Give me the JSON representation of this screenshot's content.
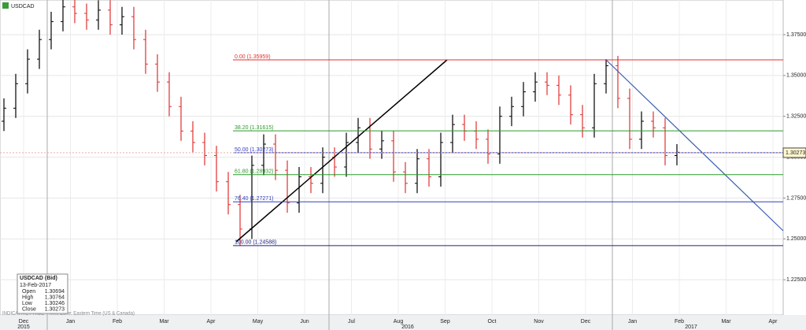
{
  "chart_data": {
    "type": "ohlc",
    "symbol": "USDCAD",
    "bars": [
      [
        1.322,
        1.336,
        1.316,
        1.33
      ],
      [
        1.33,
        1.351,
        1.324,
        1.345
      ],
      [
        1.345,
        1.366,
        1.339,
        1.36
      ],
      [
        1.36,
        1.378,
        1.354,
        1.372
      ],
      [
        1.372,
        1.389,
        1.366,
        1.383
      ],
      [
        1.383,
        1.398,
        1.377,
        1.392
      ],
      [
        1.392,
        1.398,
        1.382,
        1.388
      ],
      [
        1.388,
        1.394,
        1.378,
        1.384
      ],
      [
        1.384,
        1.396,
        1.378,
        1.39
      ],
      [
        1.39,
        1.396,
        1.375,
        1.381
      ],
      [
        1.381,
        1.392,
        1.375,
        1.386
      ],
      [
        1.386,
        1.392,
        1.366,
        1.372
      ],
      [
        1.372,
        1.378,
        1.351,
        1.357
      ],
      [
        1.357,
        1.363,
        1.34,
        1.346
      ],
      [
        1.346,
        1.352,
        1.325,
        1.331
      ],
      [
        1.331,
        1.337,
        1.31,
        1.316
      ],
      [
        1.316,
        1.322,
        1.303,
        1.309
      ],
      [
        1.309,
        1.315,
        1.295,
        1.301
      ],
      [
        1.301,
        1.307,
        1.279,
        1.285
      ],
      [
        1.285,
        1.291,
        1.265,
        1.271
      ],
      [
        1.271,
        1.277,
        1.246,
        1.256
      ],
      [
        1.256,
        1.301,
        1.25,
        1.295
      ],
      [
        1.295,
        1.314,
        1.289,
        1.308
      ],
      [
        1.308,
        1.314,
        1.286,
        1.292
      ],
      [
        1.292,
        1.298,
        1.266,
        1.272
      ],
      [
        1.272,
        1.294,
        1.266,
        1.288
      ],
      [
        1.288,
        1.294,
        1.278,
        1.284
      ],
      [
        1.284,
        1.306,
        1.278,
        1.3
      ],
      [
        1.3,
        1.306,
        1.288,
        1.294
      ],
      [
        1.294,
        1.315,
        1.288,
        1.309
      ],
      [
        1.309,
        1.324,
        1.303,
        1.318
      ],
      [
        1.318,
        1.324,
        1.299,
        1.305
      ],
      [
        1.305,
        1.316,
        1.299,
        1.31
      ],
      [
        1.31,
        1.316,
        1.285,
        1.291
      ],
      [
        1.291,
        1.297,
        1.278,
        1.284
      ],
      [
        1.284,
        1.305,
        1.278,
        1.299
      ],
      [
        1.299,
        1.305,
        1.282,
        1.288
      ],
      [
        1.288,
        1.315,
        1.282,
        1.309
      ],
      [
        1.309,
        1.326,
        1.303,
        1.32
      ],
      [
        1.32,
        1.326,
        1.31,
        1.316
      ],
      [
        1.316,
        1.322,
        1.305,
        1.311
      ],
      [
        1.311,
        1.317,
        1.296,
        1.302
      ],
      [
        1.302,
        1.331,
        1.296,
        1.325
      ],
      [
        1.325,
        1.337,
        1.319,
        1.331
      ],
      [
        1.331,
        1.346,
        1.325,
        1.34
      ],
      [
        1.34,
        1.352,
        1.334,
        1.346
      ],
      [
        1.346,
        1.352,
        1.338,
        1.344
      ],
      [
        1.344,
        1.35,
        1.332,
        1.338
      ],
      [
        1.338,
        1.344,
        1.32,
        1.326
      ],
      [
        1.326,
        1.332,
        1.312,
        1.318
      ],
      [
        1.318,
        1.351,
        1.312,
        1.345
      ],
      [
        1.345,
        1.36,
        1.339,
        1.356
      ],
      [
        1.356,
        1.362,
        1.33,
        1.336
      ],
      [
        1.336,
        1.342,
        1.305,
        1.311
      ],
      [
        1.311,
        1.328,
        1.305,
        1.322
      ],
      [
        1.322,
        1.328,
        1.312,
        1.318
      ],
      [
        1.318,
        1.324,
        1.295,
        1.301
      ],
      [
        1.301,
        1.308,
        1.295,
        1.303
      ]
    ],
    "up_color": "#000000",
    "down_color": "#e03030",
    "ylim": [
      1.2034,
      1.3962
    ],
    "yticks": [
      {
        "value": 1.375,
        "label": "1.37500"
      },
      {
        "value": 1.35,
        "label": "1.35000"
      },
      {
        "value": 1.325,
        "label": "1.32500"
      },
      {
        "value": 1.3,
        "label": "1.30000"
      },
      {
        "value": 1.275,
        "label": "1.27500"
      },
      {
        "value": 1.25,
        "label": "1.25000"
      },
      {
        "value": 1.225,
        "label": "1.22500"
      }
    ],
    "grid": true,
    "months": [
      "Dec",
      "Jan",
      "Feb",
      "Mar",
      "Apr",
      "May",
      "Jun",
      "Jul",
      "Aug",
      "Sep",
      "Oct",
      "Nov",
      "Dec",
      "Jan",
      "Feb",
      "Mar",
      "Apr"
    ],
    "years": [
      "2015",
      "2016",
      "2017"
    ],
    "fib_levels": [
      {
        "label": "0.00 (1.35959)",
        "value": 1.35959,
        "color": "#e03030"
      },
      {
        "label": "38.20 (1.31615)",
        "value": 1.31615,
        "color": "#2a9a2a"
      },
      {
        "label": "50.00 (1.30273)",
        "value": 1.30273,
        "color": "#3040c0"
      },
      {
        "label": "61.80 (1.28932)",
        "value": 1.28932,
        "color": "#2a9a2a"
      },
      {
        "label": "76.40 (1.27271)",
        "value": 1.27271,
        "color": "#3040c0"
      },
      {
        "label": "100.00 (1.24588)",
        "value": 1.24588,
        "color": "#202080"
      }
    ],
    "last_price": {
      "value": 1.30273,
      "label": "1.30273"
    },
    "footer": "INDICATIVE PRICE - Time Zone: Eastern Time (US & Canada)",
    "info": {
      "title": "USDCAD (Bid)",
      "date": "13-Feb-2017",
      "rows": [
        [
          "Open",
          "1.30694"
        ],
        [
          "High",
          "1.30764"
        ],
        [
          "Low",
          "1.30246"
        ],
        [
          "Close",
          "1.30273"
        ]
      ]
    }
  }
}
